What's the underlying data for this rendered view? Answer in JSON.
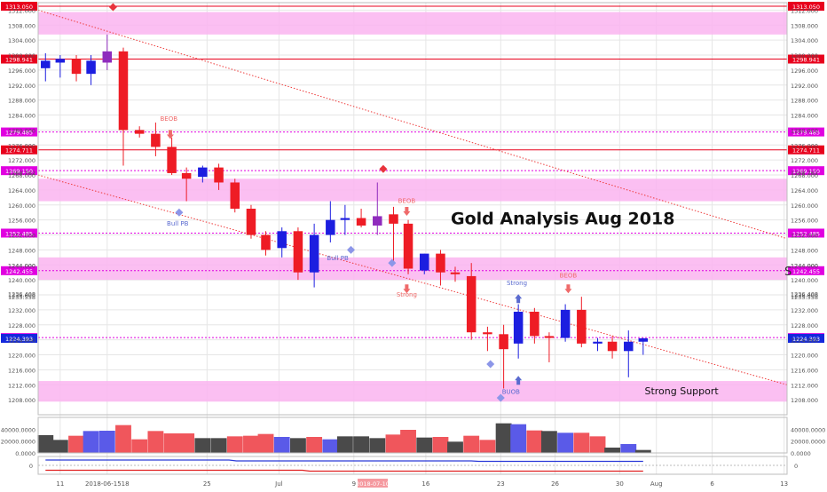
{
  "chart_data": {
    "type": "candlestick",
    "title": "Gold Analysis Aug 2018",
    "price_ylim": [
      1204,
      1314
    ],
    "y_ticks": [
      1208,
      1212,
      1216,
      1220,
      1224,
      1228,
      1232,
      1236,
      1240,
      1244,
      1248,
      1252,
      1256,
      1260,
      1264,
      1268,
      1272,
      1276,
      1280,
      1284,
      1288,
      1292,
      1296,
      1300,
      1304,
      1308,
      1312
    ],
    "y_extra_ticks": [
      1235.558,
      1236.408,
      1268.762,
      1244.0
    ],
    "x_labels": [
      {
        "label": "11",
        "x": 1.5
      },
      {
        "label": "2018-06-1518",
        "x": 4.7
      },
      {
        "label": "25",
        "x": 11.5
      },
      {
        "label": "Jul",
        "x": 16.4
      },
      {
        "label": "9",
        "x": 21.5
      },
      {
        "label": "16",
        "x": 26.4
      },
      {
        "label": "23",
        "x": 31.5
      },
      {
        "label": "26",
        "x": 35.2
      },
      {
        "label": "30",
        "x": 39.6
      },
      {
        "label": "Aug",
        "x": 42.1
      },
      {
        "label": "6",
        "x": 45.9
      },
      {
        "label": "13",
        "x": 50.8
      }
    ],
    "x_range": [
      0,
      51
    ],
    "levels": [
      {
        "value": 1313.05,
        "label": "1313.050",
        "style": "solid",
        "color": "#e8001c"
      },
      {
        "value": 1298.941,
        "label": "1298.941",
        "style": "solid",
        "color": "#e8001c"
      },
      {
        "value": 1279.485,
        "label": "1279.485",
        "style": "dotted",
        "color": "#e000e0"
      },
      {
        "value": 1274.711,
        "label": "1274.711",
        "style": "solid",
        "color": "#e8001c"
      },
      {
        "value": 1269.15,
        "label": "1269.150",
        "style": "dotted",
        "color": "#e000e0"
      },
      {
        "value": 1252.485,
        "label": "1252.485",
        "style": "dotted",
        "color": "#e000e0"
      },
      {
        "value": 1242.455,
        "label": "1242.455",
        "style": "dotted",
        "color": "#e000e0"
      },
      {
        "value": 1224.593,
        "label": "1224.593",
        "style": "dotted",
        "color": "#e000e0"
      },
      {
        "value": 1224.393,
        "label": "1224.393",
        "style": "label-only",
        "color": "#1428dc"
      }
    ],
    "zones": [
      {
        "from": 1305.5,
        "to": 1311.5
      },
      {
        "from": 1261.0,
        "to": 1267.0
      },
      {
        "from": 1240.0,
        "to": 1246.0
      },
      {
        "from": 1207.5,
        "to": 1213.0
      }
    ],
    "trendlines": [
      {
        "from": [
          0,
          1312
        ],
        "to": [
          51,
          1251
        ]
      },
      {
        "from": [
          0,
          1268
        ],
        "to": [
          51,
          1212
        ]
      }
    ],
    "candles": [
      {
        "x": 0.5,
        "o": 1296.5,
        "h": 1300.5,
        "l": 1293,
        "c": 1298.5,
        "color": "blue"
      },
      {
        "x": 1.5,
        "o": 1298,
        "h": 1300,
        "l": 1294,
        "c": 1299,
        "color": "blue"
      },
      {
        "x": 2.6,
        "o": 1299,
        "h": 1300,
        "l": 1293,
        "c": 1295,
        "color": "red"
      },
      {
        "x": 3.6,
        "o": 1295,
        "h": 1300,
        "l": 1292,
        "c": 1298.5,
        "color": "blue"
      },
      {
        "x": 4.7,
        "o": 1298,
        "h": 1305.5,
        "l": 1296,
        "c": 1301,
        "color": "purple"
      },
      {
        "x": 5.8,
        "o": 1301,
        "h": 1302,
        "l": 1270.5,
        "c": 1280,
        "color": "red"
      },
      {
        "x": 6.9,
        "o": 1280,
        "h": 1281,
        "l": 1278,
        "c": 1279,
        "color": "red"
      },
      {
        "x": 8.0,
        "o": 1279,
        "h": 1282,
        "l": 1273,
        "c": 1275.5,
        "color": "red"
      },
      {
        "x": 9.1,
        "o": 1275.5,
        "h": 1278,
        "l": 1268,
        "c": 1268.5,
        "color": "red"
      },
      {
        "x": 10.1,
        "o": 1268.5,
        "h": 1270,
        "l": 1261,
        "c": 1267,
        "color": "red"
      },
      {
        "x": 11.2,
        "o": 1267.5,
        "h": 1270.5,
        "l": 1266,
        "c": 1270,
        "color": "blue"
      },
      {
        "x": 12.3,
        "o": 1270,
        "h": 1271,
        "l": 1264,
        "c": 1266,
        "color": "red"
      },
      {
        "x": 13.4,
        "o": 1266,
        "h": 1267,
        "l": 1258,
        "c": 1259,
        "color": "red"
      },
      {
        "x": 14.5,
        "o": 1259,
        "h": 1260,
        "l": 1251,
        "c": 1252,
        "color": "red"
      },
      {
        "x": 15.5,
        "o": 1252,
        "h": 1253,
        "l": 1246.5,
        "c": 1248,
        "color": "red"
      },
      {
        "x": 16.6,
        "o": 1248.5,
        "h": 1254,
        "l": 1246,
        "c": 1253,
        "color": "blue"
      },
      {
        "x": 17.7,
        "o": 1253,
        "h": 1254,
        "l": 1240,
        "c": 1242,
        "color": "red"
      },
      {
        "x": 18.8,
        "o": 1242,
        "h": 1255,
        "l": 1238,
        "c": 1252,
        "color": "blue"
      },
      {
        "x": 19.9,
        "o": 1252,
        "h": 1261,
        "l": 1250,
        "c": 1256,
        "color": "blue"
      },
      {
        "x": 20.9,
        "o": 1256,
        "h": 1260,
        "l": 1252,
        "c": 1256.5,
        "color": "blue"
      },
      {
        "x": 22.0,
        "o": 1256.5,
        "h": 1259,
        "l": 1254,
        "c": 1254.5,
        "color": "red"
      },
      {
        "x": 23.1,
        "o": 1254.5,
        "h": 1266,
        "l": 1252,
        "c": 1257,
        "color": "purple"
      },
      {
        "x": 24.2,
        "o": 1257.5,
        "h": 1259.5,
        "l": 1245,
        "c": 1255,
        "color": "red"
      },
      {
        "x": 25.2,
        "o": 1255,
        "h": 1256,
        "l": 1241.5,
        "c": 1243,
        "color": "red"
      },
      {
        "x": 26.3,
        "o": 1242.5,
        "h": 1247,
        "l": 1241.5,
        "c": 1247,
        "color": "blue"
      },
      {
        "x": 27.4,
        "o": 1247,
        "h": 1248,
        "l": 1238.5,
        "c": 1242,
        "color": "red"
      },
      {
        "x": 28.4,
        "o": 1242,
        "h": 1243.5,
        "l": 1239.5,
        "c": 1241.5,
        "color": "red"
      },
      {
        "x": 29.5,
        "o": 1241,
        "h": 1244.5,
        "l": 1224,
        "c": 1226,
        "color": "red"
      },
      {
        "x": 30.6,
        "o": 1226,
        "h": 1227.5,
        "l": 1221,
        "c": 1225.5,
        "color": "red"
      },
      {
        "x": 31.7,
        "o": 1225.5,
        "h": 1228,
        "l": 1211,
        "c": 1221.5,
        "color": "red"
      },
      {
        "x": 32.7,
        "o": 1223,
        "h": 1233.5,
        "l": 1219,
        "c": 1231.5,
        "color": "blue"
      },
      {
        "x": 33.8,
        "o": 1231.5,
        "h": 1232.5,
        "l": 1223,
        "c": 1225,
        "color": "red"
      },
      {
        "x": 34.8,
        "o": 1225,
        "h": 1226,
        "l": 1218,
        "c": 1224.5,
        "color": "red"
      },
      {
        "x": 35.9,
        "o": 1224.5,
        "h": 1233.5,
        "l": 1223.5,
        "c": 1232,
        "color": "blue"
      },
      {
        "x": 37.0,
        "o": 1232,
        "h": 1235.5,
        "l": 1222,
        "c": 1223,
        "color": "red"
      },
      {
        "x": 38.1,
        "o": 1223,
        "h": 1224.5,
        "l": 1221,
        "c": 1223.5,
        "color": "blue"
      },
      {
        "x": 39.1,
        "o": 1223.5,
        "h": 1225,
        "l": 1219,
        "c": 1221,
        "color": "red"
      },
      {
        "x": 40.2,
        "o": 1221,
        "h": 1226.5,
        "l": 1214,
        "c": 1223.5,
        "color": "blue"
      },
      {
        "x": 41.2,
        "o": 1223.5,
        "h": 1224.5,
        "l": 1220,
        "c": 1224.4,
        "color": "blue"
      }
    ],
    "annotations": [
      {
        "text": "BEOB",
        "x": 8.9,
        "y": 1282.5,
        "color": "#ef6a6a"
      },
      {
        "text": "Bull PB",
        "x": 9.5,
        "y": 1254.5,
        "color": "#5a6acf"
      },
      {
        "text": "Bull PB",
        "x": 20.4,
        "y": 1245.3,
        "color": "#5a6acf"
      },
      {
        "text": "BEOB",
        "x": 25.1,
        "y": 1260.5,
        "color": "#ef6a6a"
      },
      {
        "text": "Strong",
        "x": 25.1,
        "y": 1235.5,
        "color": "#ef6a6a"
      },
      {
        "text": "Strong",
        "x": 32.6,
        "y": 1238.6,
        "color": "#5a6acf"
      },
      {
        "text": "BEOB",
        "x": 36.1,
        "y": 1240.6,
        "color": "#ef6a6a"
      },
      {
        "text": "BUOB",
        "x": 32.2,
        "y": 1209.6,
        "color": "#5a6acf"
      }
    ],
    "arrows": [
      {
        "x": 9.0,
        "y": 1278.8,
        "dir": "down",
        "color": "#ef6a6a"
      },
      {
        "x": 25.1,
        "y": 1258.3,
        "dir": "down",
        "color": "#ef6a6a"
      },
      {
        "x": 25.1,
        "y": 1237.6,
        "dir": "down",
        "color": "#ef6a6a"
      },
      {
        "x": 32.7,
        "y": 1235.0,
        "dir": "up",
        "color": "#5a6acf"
      },
      {
        "x": 36.1,
        "y": 1237.6,
        "dir": "down",
        "color": "#ef6a6a"
      },
      {
        "x": 32.7,
        "y": 1213.2,
        "dir": "up",
        "color": "#5a6acf"
      }
    ],
    "diamonds": [
      {
        "x": 5.1,
        "y": 1312.8,
        "color": "#e8343c"
      },
      {
        "x": 9.6,
        "y": 1258.0,
        "color": "#8c96e8"
      },
      {
        "x": 21.3,
        "y": 1248.0,
        "color": "#8c96e8"
      },
      {
        "x": 23.5,
        "y": 1269.6,
        "color": "#e8343c"
      },
      {
        "x": 24.1,
        "y": 1244.5,
        "color": "#8c96e8"
      },
      {
        "x": 30.8,
        "y": 1217.5,
        "color": "#8c96e8"
      },
      {
        "x": 31.5,
        "y": 1208.5,
        "color": "#8c96e8"
      }
    ],
    "labels": [
      {
        "text": "Gold Analysis Aug 2018",
        "x": 28.1,
        "y": 1254.9
      },
      {
        "text": "Strong Support",
        "x": 41.3,
        "y": 1209.5
      }
    ],
    "volume": {
      "ylim": [
        0,
        60000
      ],
      "ticks": [
        {
          "v": 0,
          "label": "0.0000"
        },
        {
          "v": 20000,
          "label": "20000.0000"
        },
        {
          "v": 40000,
          "label": "40000.0000"
        }
      ],
      "bars": [
        {
          "x": 0.5,
          "v": 30000,
          "color": "#4a4a4a"
        },
        {
          "x": 1.5,
          "v": 22000,
          "color": "#4a4a4a"
        },
        {
          "x": 2.6,
          "v": 29000,
          "color": "#f0565c"
        },
        {
          "x": 3.6,
          "v": 37000,
          "color": "#5a5ae8"
        },
        {
          "x": 4.7,
          "v": 37500,
          "color": "#5a5ae8"
        },
        {
          "x": 5.8,
          "v": 47000,
          "color": "#f0565c"
        },
        {
          "x": 6.9,
          "v": 23000,
          "color": "#f0565c"
        },
        {
          "x": 8.0,
          "v": 37000,
          "color": "#f0565c"
        },
        {
          "x": 9.1,
          "v": 33000,
          "color": "#f0565c"
        },
        {
          "x": 10.1,
          "v": 33000,
          "color": "#f0565c"
        },
        {
          "x": 11.2,
          "v": 25000,
          "color": "#4a4a4a"
        },
        {
          "x": 12.3,
          "v": 25000,
          "color": "#4a4a4a"
        },
        {
          "x": 13.4,
          "v": 28000,
          "color": "#f0565c"
        },
        {
          "x": 14.5,
          "v": 29000,
          "color": "#f0565c"
        },
        {
          "x": 15.5,
          "v": 32000,
          "color": "#f0565c"
        },
        {
          "x": 16.6,
          "v": 27000,
          "color": "#5a5ae8"
        },
        {
          "x": 17.7,
          "v": 25000,
          "color": "#4a4a4a"
        },
        {
          "x": 18.8,
          "v": 27000,
          "color": "#f0565c"
        },
        {
          "x": 19.9,
          "v": 23000,
          "color": "#5a5ae8"
        },
        {
          "x": 20.9,
          "v": 28000,
          "color": "#4a4a4a"
        },
        {
          "x": 22.0,
          "v": 28000,
          "color": "#4a4a4a"
        },
        {
          "x": 23.1,
          "v": 25000,
          "color": "#4a4a4a"
        },
        {
          "x": 24.2,
          "v": 31000,
          "color": "#f0565c"
        },
        {
          "x": 25.2,
          "v": 39000,
          "color": "#f0565c"
        },
        {
          "x": 26.3,
          "v": 26000,
          "color": "#4a4a4a"
        },
        {
          "x": 27.4,
          "v": 27000,
          "color": "#f0565c"
        },
        {
          "x": 28.4,
          "v": 19000,
          "color": "#4a4a4a"
        },
        {
          "x": 29.5,
          "v": 29000,
          "color": "#f0565c"
        },
        {
          "x": 30.6,
          "v": 22000,
          "color": "#f0565c"
        },
        {
          "x": 31.7,
          "v": 50000,
          "color": "#4a4a4a"
        },
        {
          "x": 32.7,
          "v": 48500,
          "color": "#5a5ae8"
        },
        {
          "x": 33.8,
          "v": 38000,
          "color": "#f0565c"
        },
        {
          "x": 34.8,
          "v": 37000,
          "color": "#4a4a4a"
        },
        {
          "x": 35.9,
          "v": 34000,
          "color": "#5a5ae8"
        },
        {
          "x": 37.0,
          "v": 34000,
          "color": "#f0565c"
        },
        {
          "x": 38.1,
          "v": 28000,
          "color": "#f0565c"
        },
        {
          "x": 39.1,
          "v": 9000,
          "color": "#4a4a4a"
        },
        {
          "x": 40.2,
          "v": 15000,
          "color": "#5a5ae8"
        },
        {
          "x": 41.2,
          "v": 5000,
          "color": "#4a4a4a"
        }
      ]
    },
    "oscillator": {
      "ylim": [
        -1,
        1
      ],
      "ticks": [
        {
          "v": 0,
          "label": "0"
        }
      ],
      "blue_line": [
        [
          0.5,
          0.6
        ],
        [
          13.0,
          0.6
        ],
        [
          13.5,
          0.5
        ],
        [
          29.5,
          0.5
        ],
        [
          30,
          0.45
        ],
        [
          41.2,
          0.45
        ]
      ],
      "red_line": [
        [
          0.5,
          -0.55
        ],
        [
          18,
          -0.55
        ],
        [
          18.5,
          -0.65
        ],
        [
          41.2,
          -0.65
        ]
      ]
    },
    "x_label_overlay": "2018-07-10"
  },
  "colors": {
    "up": "#1c1ee0",
    "down": "#ee1c25",
    "purple": "#8f2bbd",
    "zone": "#fab4f0",
    "grid": "#e6e6e6",
    "axis_text": "#555555"
  },
  "partial_label": "S"
}
